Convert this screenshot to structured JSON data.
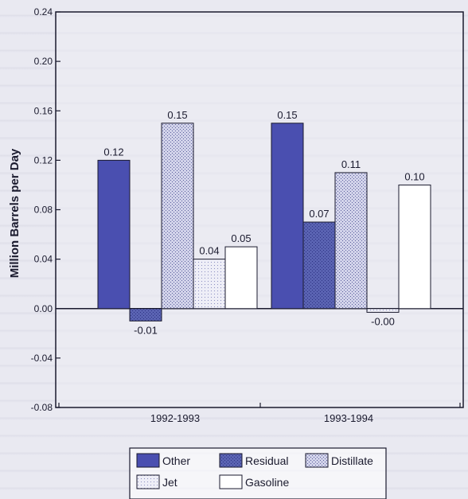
{
  "chart_data": {
    "type": "bar",
    "title": "",
    "xlabel": "",
    "ylabel": "Million Barrels per Day",
    "ylim": [
      -0.08,
      0.24
    ],
    "yticks": [
      "0.24",
      "0.20",
      "0.16",
      "0.12",
      "0.08",
      "0.04",
      "0.00",
      "-0.04",
      "-0.08"
    ],
    "grid": false,
    "legend_position": "bottom",
    "categories": [
      "1992-1993",
      "1993-1994"
    ],
    "series": [
      {
        "name": "Other",
        "values": [
          0.12,
          0.15
        ],
        "labels": [
          "0.12",
          "0.15"
        ]
      },
      {
        "name": "Residual",
        "values": [
          -0.01,
          0.07
        ],
        "labels": [
          "-0.01",
          "0.07"
        ]
      },
      {
        "name": "Distillate",
        "values": [
          0.15,
          0.11
        ],
        "labels": [
          "0.15",
          "0.11"
        ]
      },
      {
        "name": "Jet",
        "values": [
          0.04,
          -0.003
        ],
        "labels": [
          "0.04",
          "-0.00"
        ]
      },
      {
        "name": "Gasoline",
        "values": [
          0.05,
          0.1
        ],
        "labels": [
          "0.05",
          "0.10"
        ]
      }
    ]
  },
  "colors": {
    "Other": "#4a4fb0",
    "Residual": "#5a63b2",
    "Distillate": "#c9cae4",
    "Jet": "#dcdcee",
    "Gasoline": "#ffffff",
    "stroke": "#1a1a2e"
  }
}
